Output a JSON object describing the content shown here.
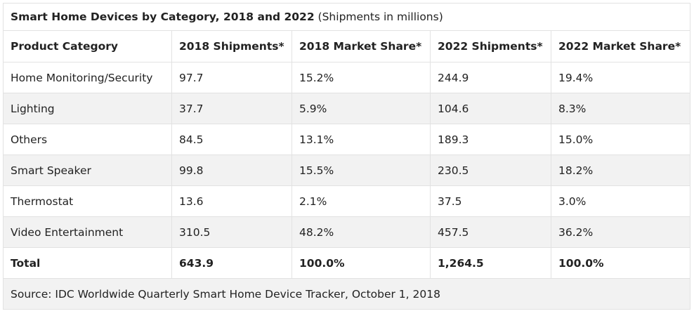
{
  "chart_data": {
    "type": "table",
    "title": "Smart Home Devices by Category, 2018 and 2022",
    "subtitle": "(Shipments in millions)",
    "columns": [
      "Product Category",
      "2018 Shipments*",
      "2018 Market Share*",
      "2022 Shipments*",
      "2022 Market Share*"
    ],
    "rows": [
      [
        "Home Monitoring/Security",
        "97.7",
        "15.2%",
        "244.9",
        "19.4%"
      ],
      [
        "Lighting",
        "37.7",
        "5.9%",
        "104.6",
        "8.3%"
      ],
      [
        "Others",
        "84.5",
        "13.1%",
        "189.3",
        "15.0%"
      ],
      [
        "Smart Speaker",
        "99.8",
        "15.5%",
        "230.5",
        "18.2%"
      ],
      [
        "Thermostat",
        "13.6",
        "2.1%",
        "37.5",
        "3.0%"
      ],
      [
        "Video Entertainment",
        "310.5",
        "48.2%",
        "457.5",
        "36.2%"
      ]
    ],
    "total": [
      "Total",
      "643.9",
      "100.0%",
      "1,264.5",
      "100.0%"
    ],
    "source": "Source: IDC Worldwide Quarterly Smart Home Device Tracker, October 1, 2018"
  }
}
